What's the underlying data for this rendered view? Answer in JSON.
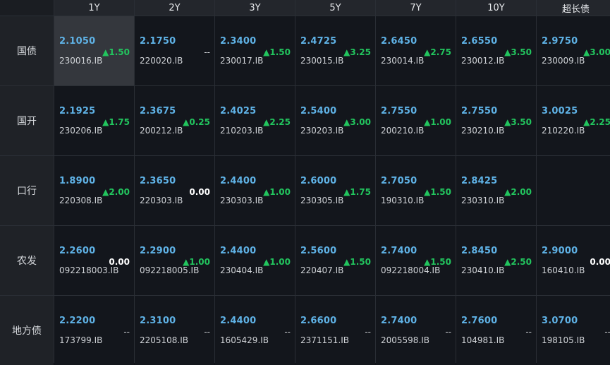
{
  "columns": [
    "1Y",
    "2Y",
    "3Y",
    "5Y",
    "7Y",
    "10Y",
    "超长债"
  ],
  "rows": [
    {
      "label": "国债",
      "cells": [
        {
          "yield": "2.1050",
          "code": "230016.IB",
          "change": "▲1.50",
          "dir": "up"
        },
        {
          "yield": "2.1750",
          "code": "220020.IB",
          "change": "--",
          "dir": "none"
        },
        {
          "yield": "2.3400",
          "code": "230017.IB",
          "change": "▲1.50",
          "dir": "up"
        },
        {
          "yield": "2.4725",
          "code": "230015.IB",
          "change": "▲3.25",
          "dir": "up"
        },
        {
          "yield": "2.6450",
          "code": "230014.IB",
          "change": "▲2.75",
          "dir": "up"
        },
        {
          "yield": "2.6550",
          "code": "230012.IB",
          "change": "▲3.50",
          "dir": "up"
        },
        {
          "yield": "2.9750",
          "code": "230009.IB",
          "change": "▲3.00",
          "dir": "up"
        }
      ]
    },
    {
      "label": "国开",
      "cells": [
        {
          "yield": "2.1925",
          "code": "230206.IB",
          "change": "▲1.75",
          "dir": "up"
        },
        {
          "yield": "2.3675",
          "code": "200212.IB",
          "change": "▲0.25",
          "dir": "up"
        },
        {
          "yield": "2.4025",
          "code": "210203.IB",
          "change": "▲2.25",
          "dir": "up"
        },
        {
          "yield": "2.5400",
          "code": "230203.IB",
          "change": "▲3.00",
          "dir": "up"
        },
        {
          "yield": "2.7550",
          "code": "200210.IB",
          "change": "▲1.00",
          "dir": "up"
        },
        {
          "yield": "2.7550",
          "code": "230210.IB",
          "change": "▲3.50",
          "dir": "up"
        },
        {
          "yield": "3.0025",
          "code": "210220.IB",
          "change": "▲2.25",
          "dir": "up"
        }
      ]
    },
    {
      "label": "口行",
      "cells": [
        {
          "yield": "1.8900",
          "code": "220308.IB",
          "change": "▲2.00",
          "dir": "up"
        },
        {
          "yield": "2.3650",
          "code": "220303.IB",
          "change": "0.00",
          "dir": "flat"
        },
        {
          "yield": "2.4400",
          "code": "230303.IB",
          "change": "▲1.00",
          "dir": "up"
        },
        {
          "yield": "2.6000",
          "code": "230305.IB",
          "change": "▲1.75",
          "dir": "up"
        },
        {
          "yield": "2.7050",
          "code": "190310.IB",
          "change": "▲1.50",
          "dir": "up"
        },
        {
          "yield": "2.8425",
          "code": "230310.IB",
          "change": "▲2.00",
          "dir": "up"
        },
        {
          "yield": "",
          "code": "",
          "change": "",
          "dir": "none"
        }
      ]
    },
    {
      "label": "农发",
      "cells": [
        {
          "yield": "2.2600",
          "code": "092218003.IB",
          "change": "0.00",
          "dir": "flat"
        },
        {
          "yield": "2.2900",
          "code": "092218005.IB",
          "change": "▲1.00",
          "dir": "up"
        },
        {
          "yield": "2.4400",
          "code": "230404.IB",
          "change": "▲1.00",
          "dir": "up"
        },
        {
          "yield": "2.5600",
          "code": "220407.IB",
          "change": "▲1.50",
          "dir": "up"
        },
        {
          "yield": "2.7400",
          "code": "092218004.IB",
          "change": "▲1.50",
          "dir": "up"
        },
        {
          "yield": "2.8450",
          "code": "230410.IB",
          "change": "▲2.50",
          "dir": "up"
        },
        {
          "yield": "2.9000",
          "code": "160410.IB",
          "change": "0.00",
          "dir": "flat"
        }
      ]
    },
    {
      "label": "地方债",
      "cells": [
        {
          "yield": "2.2200",
          "code": "173799.IB",
          "change": "--",
          "dir": "none"
        },
        {
          "yield": "2.3100",
          "code": "2205108.IB",
          "change": "--",
          "dir": "none"
        },
        {
          "yield": "2.4400",
          "code": "1605429.IB",
          "change": "--",
          "dir": "none"
        },
        {
          "yield": "2.6600",
          "code": "2371151.IB",
          "change": "--",
          "dir": "none"
        },
        {
          "yield": "2.7400",
          "code": "2005598.IB",
          "change": "--",
          "dir": "none"
        },
        {
          "yield": "2.7600",
          "code": "104981.IB",
          "change": "--",
          "dir": "none"
        },
        {
          "yield": "3.0700",
          "code": "198105.IB",
          "change": "--",
          "dir": "none"
        }
      ]
    }
  ],
  "active_cell": {
    "row": 0,
    "col": 0
  },
  "colors": {
    "yield": "#5fb2e6",
    "up": "#22c55e",
    "flat": "#ffffff",
    "background": "#13161c",
    "grid": "#2a2e35"
  }
}
